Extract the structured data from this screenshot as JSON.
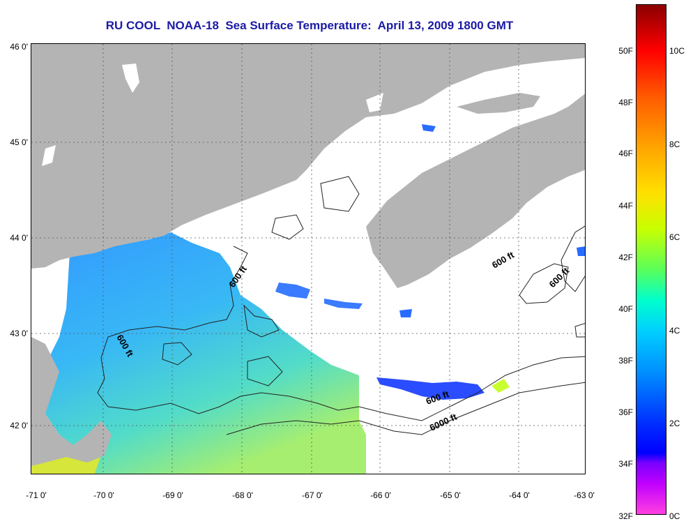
{
  "title": "RU COOL  NOAA-18  Sea Surface Temperature:  April 13, 2009 1800 GMT",
  "map": {
    "lat_labels": [
      "46 0'",
      "45 0'",
      "44 0'",
      "43 0'",
      "42 0'"
    ],
    "lon_labels": [
      "-71 0'",
      "-70 0'",
      "-69 0'",
      "-68 0'",
      "-67 0'",
      "-66 0'",
      "-65 0'",
      "-64 0'",
      "-63 0'"
    ],
    "contours": [
      "600 ft",
      "600 ft",
      "600 ft",
      "600 ft",
      "600 ft",
      "6000 ft"
    ],
    "colors": {
      "land": "#b4b4b4",
      "cloud": "#ffffff",
      "water_cold": "#2f9bff",
      "water_mid": "#3fe0e8",
      "water_warm": "#a6ee70"
    }
  },
  "colorbar": {
    "fahrenheit": [
      "50F",
      "48F",
      "46F",
      "44F",
      "42F",
      "40F",
      "38F",
      "36F",
      "34F",
      "32F"
    ],
    "celsius": [
      "10C",
      "8C",
      "6C",
      "4C",
      "2C",
      "0C"
    ]
  }
}
